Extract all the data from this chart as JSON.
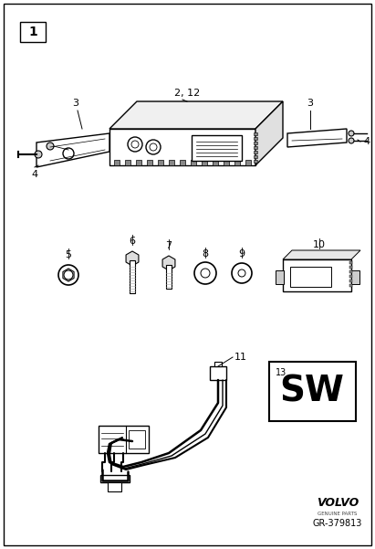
{
  "bg_color": "#ffffff",
  "fig_number": "1",
  "part_number": "GR-379813",
  "brand": "VOLVO",
  "brand_sub": "GENUINE PARTS",
  "section1_label": "2, 12",
  "label_color": "#000000",
  "line_color": "#000000"
}
